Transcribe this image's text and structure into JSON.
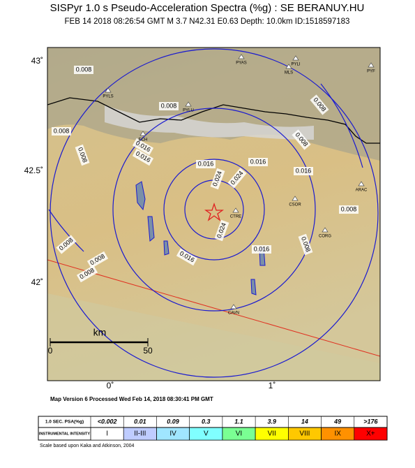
{
  "header": {
    "title": "SISPyr 1.0 s Pseudo-Acceleration Spectra (%g) : SE BERANUY.HU",
    "subtitle": "FEB 14 2018 08:26:54  GMT   M 3.7   N42.31 E0.63   Depth: 10.0km   ID:1518597183"
  },
  "map": {
    "lat_labels": [
      "43˚",
      "42.5˚",
      "42˚"
    ],
    "lon_labels": [
      "0˚",
      "1˚"
    ],
    "contour_labels": [
      "0.008",
      "0.008",
      "0.008",
      "0.008",
      "0.008",
      "0.008",
      "0.008",
      "0.008",
      "0.008",
      "0.008",
      "0.008",
      "0.016",
      "0.016",
      "0.016",
      "0.016",
      "0.016",
      "0.016",
      "0.016",
      "0.024",
      "0.024",
      "0.024"
    ],
    "stations": [
      "PYAS",
      "PYLI",
      "MLS",
      "PYF",
      "PYLS",
      "PYLU",
      "ECH",
      "CTRE",
      "CSOR",
      "CORG",
      "CAVN",
      "ARAC"
    ],
    "scale_bar": {
      "unit": "km",
      "start": "0",
      "end": "50"
    }
  },
  "footer": "Map Version 6 Processed Wed Feb 14, 2018 08:30:41 PM GMT",
  "legend": {
    "row_headers": [
      "1.0 SEC. PSA(%g)",
      "INSTRUMENTAL INTENSITY"
    ],
    "psa": [
      "<0.002",
      "0.01",
      "0.09",
      "0.3",
      "1.1",
      "3.9",
      "14",
      "49",
      ">176"
    ],
    "intensity": [
      "I",
      "II-III",
      "IV",
      "V",
      "VI",
      "VII",
      "VIII",
      "IX",
      "X+"
    ],
    "colors": [
      "#ffffff",
      "#bfccff",
      "#a0e6ff",
      "#80ffff",
      "#7aff93",
      "#ffff00",
      "#ffc800",
      "#ff9100",
      "#ff0000"
    ]
  },
  "note": "Scale based upon Kaka and Atkinson, 2004"
}
